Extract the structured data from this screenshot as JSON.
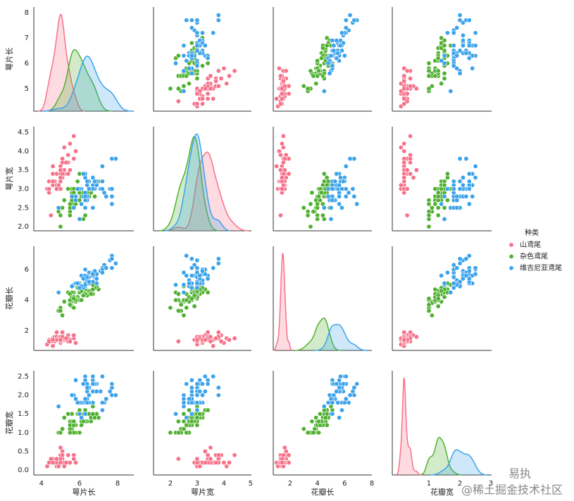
{
  "chart_data": {
    "type": "pairplot",
    "variables": [
      "萼片长",
      "萼片宽",
      "花瓣长",
      "花瓣宽"
    ],
    "legend_title": "种类",
    "axes": [
      {
        "xlim": [
          3.6,
          8.85
        ],
        "xticks": [
          4,
          6,
          8
        ],
        "ylim": [
          4.11,
          8.22
        ],
        "yticks": [
          5,
          6,
          7,
          8
        ]
      },
      {
        "xlim": [
          1.37,
          5.03
        ],
        "xticks": [
          2,
          3,
          4,
          5
        ],
        "ylim": [
          1.89,
          4.65
        ],
        "yticks": [
          {
            "value": 2,
            "label": "2.0"
          },
          {
            "value": 2.5,
            "label": "2.5"
          },
          {
            "value": 3,
            "label": "3.0"
          },
          {
            "value": 3.5,
            "label": "3.5"
          },
          {
            "value": 4,
            "label": "4.0"
          },
          {
            "value": 4.5,
            "label": "4.5"
          }
        ]
      },
      {
        "xlim": [
          0.76,
          8.0
        ],
        "xticks": [
          2,
          4,
          6,
          8
        ],
        "ylim": [
          0.71,
          7.52
        ],
        "yticks": [
          2,
          4,
          6
        ]
      },
      {
        "xlim": [
          -0.18,
          3.02
        ],
        "xticks": [
          1,
          2,
          3
        ],
        "ylim": [
          -0.13,
          2.65
        ],
        "yticks": [
          {
            "value": 0,
            "label": "0.0"
          },
          {
            "value": 0.5,
            "label": "0.5"
          },
          {
            "value": 1,
            "label": "1.0"
          },
          {
            "value": 1.5,
            "label": "1.5"
          },
          {
            "value": 2,
            "label": "2.0"
          },
          {
            "value": 2.5,
            "label": "2.5"
          }
        ]
      }
    ],
    "series": [
      {
        "name": "山鸢尾",
        "color": "#f77189",
        "values": [
          [
            5.1,
            4.9,
            4.7,
            4.6,
            5.0,
            5.4,
            4.6,
            5.0,
            4.4,
            4.9,
            5.4,
            4.8,
            4.8,
            4.3,
            5.8,
            5.7,
            5.4,
            5.1,
            5.7,
            5.1,
            5.4,
            5.1,
            4.6,
            5.1,
            4.8,
            5.0,
            5.0,
            5.2,
            5.2,
            4.7,
            4.8,
            5.4,
            5.2,
            5.5,
            4.9,
            5.0,
            5.5,
            4.9,
            4.4,
            5.1,
            5.0,
            4.5,
            4.4,
            5.0,
            5.1,
            4.8,
            5.1,
            4.6,
            5.3,
            5.0
          ],
          [
            3.5,
            3.0,
            3.2,
            3.1,
            3.6,
            3.9,
            3.4,
            3.4,
            2.9,
            3.1,
            3.7,
            3.4,
            3.0,
            3.0,
            4.0,
            4.4,
            3.9,
            3.5,
            3.8,
            3.8,
            3.4,
            3.7,
            3.6,
            3.3,
            3.4,
            3.0,
            3.4,
            3.5,
            3.4,
            3.2,
            3.1,
            3.4,
            4.1,
            4.2,
            3.1,
            3.2,
            3.5,
            3.1,
            3.0,
            3.4,
            3.5,
            2.3,
            3.2,
            3.5,
            3.8,
            3.0,
            3.8,
            3.2,
            3.7,
            3.3
          ],
          [
            1.4,
            1.4,
            1.3,
            1.5,
            1.4,
            1.7,
            1.4,
            1.5,
            1.4,
            1.5,
            1.5,
            1.6,
            1.4,
            1.1,
            1.2,
            1.5,
            1.3,
            1.4,
            1.7,
            1.5,
            1.7,
            1.5,
            1.0,
            1.7,
            1.9,
            1.6,
            1.6,
            1.5,
            1.4,
            1.6,
            1.6,
            1.5,
            1.5,
            1.4,
            1.5,
            1.2,
            1.3,
            1.5,
            1.3,
            1.5,
            1.3,
            1.3,
            1.3,
            1.6,
            1.9,
            1.4,
            1.6,
            1.4,
            1.5,
            1.4
          ],
          [
            0.2,
            0.2,
            0.2,
            0.2,
            0.2,
            0.4,
            0.3,
            0.2,
            0.2,
            0.1,
            0.2,
            0.2,
            0.1,
            0.1,
            0.2,
            0.4,
            0.4,
            0.3,
            0.3,
            0.3,
            0.2,
            0.4,
            0.2,
            0.5,
            0.2,
            0.2,
            0.4,
            0.2,
            0.2,
            0.2,
            0.2,
            0.4,
            0.1,
            0.2,
            0.1,
            0.2,
            0.2,
            0.1,
            0.2,
            0.2,
            0.3,
            0.3,
            0.2,
            0.6,
            0.4,
            0.3,
            0.2,
            0.2,
            0.2,
            0.2
          ]
        ]
      },
      {
        "name": "杂色鸢尾",
        "color": "#50b131",
        "values": [
          [
            7.0,
            6.4,
            6.9,
            5.5,
            6.5,
            5.7,
            6.3,
            4.9,
            6.6,
            5.2,
            5.0,
            5.9,
            6.0,
            6.1,
            5.6,
            6.7,
            5.6,
            5.8,
            6.2,
            5.6,
            5.9,
            6.1,
            6.3,
            6.1,
            6.4,
            6.6,
            6.8,
            6.7,
            6.0,
            5.7,
            5.5,
            5.5,
            5.8,
            6.0,
            5.4,
            6.0,
            6.7,
            6.3,
            5.6,
            5.5,
            5.5,
            6.1,
            5.8,
            5.0,
            5.6,
            5.7,
            5.7,
            6.2,
            5.1,
            5.7
          ],
          [
            3.2,
            3.2,
            3.1,
            2.3,
            2.8,
            2.8,
            3.3,
            2.4,
            2.9,
            2.7,
            2.0,
            3.0,
            2.2,
            2.9,
            2.9,
            3.1,
            3.0,
            2.7,
            2.2,
            2.5,
            3.2,
            2.8,
            2.5,
            2.8,
            2.9,
            3.0,
            2.8,
            3.0,
            2.9,
            2.6,
            2.4,
            2.4,
            2.7,
            2.7,
            3.0,
            3.4,
            3.1,
            2.3,
            3.0,
            2.5,
            2.6,
            3.0,
            2.6,
            2.3,
            2.7,
            3.0,
            2.9,
            2.9,
            2.5,
            2.8
          ],
          [
            4.7,
            4.5,
            4.9,
            4.0,
            4.6,
            4.5,
            4.7,
            3.3,
            4.6,
            3.9,
            3.5,
            4.2,
            4.0,
            4.7,
            3.6,
            4.4,
            4.5,
            4.1,
            4.5,
            3.9,
            4.8,
            4.0,
            4.9,
            4.7,
            4.3,
            4.4,
            4.8,
            5.0,
            4.5,
            3.5,
            3.8,
            3.7,
            3.9,
            5.1,
            4.5,
            4.5,
            4.7,
            4.4,
            4.1,
            4.0,
            4.4,
            4.6,
            4.0,
            3.3,
            4.2,
            4.2,
            4.2,
            4.3,
            3.0,
            4.1
          ],
          [
            1.4,
            1.5,
            1.5,
            1.3,
            1.5,
            1.3,
            1.6,
            1.0,
            1.3,
            1.4,
            1.0,
            1.5,
            1.0,
            1.4,
            1.3,
            1.4,
            1.5,
            1.0,
            1.5,
            1.1,
            1.8,
            1.3,
            1.5,
            1.2,
            1.3,
            1.4,
            1.4,
            1.7,
            1.5,
            1.0,
            1.1,
            1.0,
            1.2,
            1.6,
            1.5,
            1.6,
            1.5,
            1.3,
            1.3,
            1.3,
            1.2,
            1.4,
            1.2,
            1.0,
            1.3,
            1.2,
            1.3,
            1.3,
            1.1,
            1.3
          ]
        ]
      },
      {
        "name": "维吉尼亚鸢尾",
        "color": "#3ba3ec",
        "values": [
          [
            6.3,
            5.8,
            7.1,
            6.3,
            6.5,
            7.6,
            4.9,
            7.3,
            6.7,
            7.2,
            6.5,
            6.4,
            6.8,
            5.7,
            5.8,
            6.4,
            6.5,
            7.7,
            7.7,
            6.0,
            6.9,
            5.6,
            7.7,
            6.3,
            6.7,
            7.2,
            6.2,
            6.1,
            6.4,
            7.2,
            7.4,
            7.9,
            6.4,
            6.3,
            6.1,
            7.7,
            6.3,
            6.4,
            6.0,
            6.9,
            6.7,
            6.9,
            5.8,
            6.8,
            6.7,
            6.7,
            6.3,
            6.5,
            6.2,
            5.9
          ],
          [
            3.3,
            2.7,
            3.0,
            2.9,
            3.0,
            3.0,
            2.5,
            2.9,
            2.5,
            3.6,
            3.2,
            2.7,
            3.0,
            2.5,
            2.8,
            3.2,
            3.0,
            3.8,
            2.6,
            2.2,
            3.2,
            2.8,
            2.8,
            2.7,
            3.3,
            3.2,
            2.8,
            3.0,
            2.8,
            3.0,
            2.8,
            3.8,
            2.8,
            2.8,
            2.6,
            3.0,
            3.4,
            3.1,
            3.0,
            3.1,
            3.1,
            3.1,
            2.7,
            3.2,
            3.3,
            3.0,
            2.5,
            3.0,
            3.4,
            3.0
          ],
          [
            6.0,
            5.1,
            5.9,
            5.6,
            5.8,
            6.6,
            4.5,
            6.3,
            5.8,
            6.1,
            5.1,
            5.3,
            5.5,
            5.0,
            5.1,
            5.3,
            5.5,
            6.7,
            6.9,
            5.0,
            5.7,
            4.9,
            6.7,
            4.9,
            5.7,
            6.0,
            4.8,
            4.9,
            5.6,
            5.8,
            6.1,
            6.4,
            5.6,
            5.1,
            5.6,
            6.1,
            5.6,
            5.5,
            4.8,
            5.4,
            5.6,
            5.1,
            5.1,
            5.9,
            5.7,
            5.2,
            5.0,
            5.2,
            5.4,
            5.1
          ],
          [
            2.5,
            1.9,
            2.1,
            1.8,
            2.2,
            2.1,
            1.7,
            1.8,
            1.8,
            2.5,
            2.0,
            1.9,
            2.1,
            2.0,
            2.4,
            2.3,
            1.8,
            2.2,
            2.3,
            1.5,
            2.3,
            2.0,
            2.0,
            1.8,
            2.1,
            1.8,
            1.8,
            1.8,
            2.1,
            1.6,
            1.9,
            2.0,
            2.2,
            1.5,
            1.4,
            2.3,
            2.4,
            1.8,
            1.8,
            2.1,
            2.4,
            2.3,
            1.9,
            2.3,
            2.5,
            2.3,
            1.9,
            2.0,
            2.3,
            1.8
          ]
        ]
      }
    ]
  },
  "watermark": [
    "易执",
    "@稀土掘金技术社区"
  ]
}
